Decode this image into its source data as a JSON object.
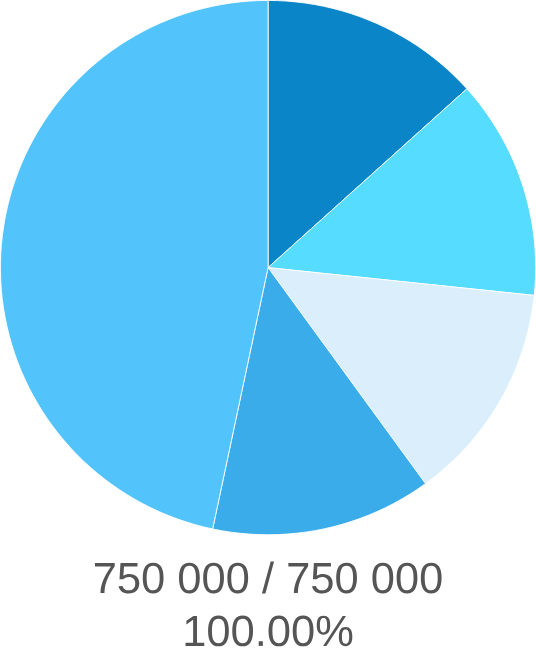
{
  "chart_data": {
    "type": "pie",
    "categories": [
      null,
      null,
      null,
      null,
      null
    ],
    "values": [
      13.33,
      13.33,
      13.33,
      13.33,
      46.68
    ],
    "colors": [
      "#0a86c8",
      "#55dcff",
      "#dbeefb",
      "#3aacea",
      "#53c4fb"
    ],
    "annotations": [
      "750 000 / 750 000",
      "100.00%"
    ]
  }
}
